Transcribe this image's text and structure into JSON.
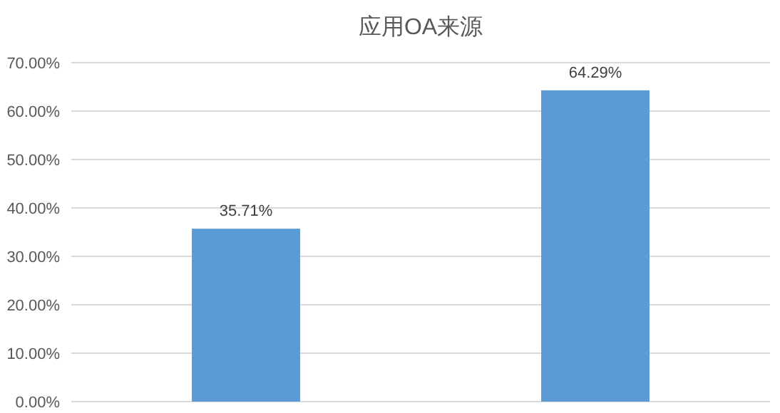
{
  "chart_data": {
    "type": "bar",
    "title": "应用OA来源",
    "categories": [
      null,
      null
    ],
    "values": [
      35.71,
      64.29
    ],
    "value_labels": [
      "35.71%",
      "64.29%"
    ],
    "color": "#5b9bd5",
    "ylim": [
      0,
      70
    ],
    "yticks": [
      {
        "value": 0,
        "label": "0.00%"
      },
      {
        "value": 10,
        "label": "10.00%"
      },
      {
        "value": 20,
        "label": "20.00%"
      },
      {
        "value": 30,
        "label": "30.00%"
      },
      {
        "value": 40,
        "label": "40.00%"
      },
      {
        "value": 50,
        "label": "50.00%"
      },
      {
        "value": 60,
        "label": "60.00%"
      },
      {
        "value": 70,
        "label": "70.00%"
      }
    ],
    "grid": "y"
  }
}
